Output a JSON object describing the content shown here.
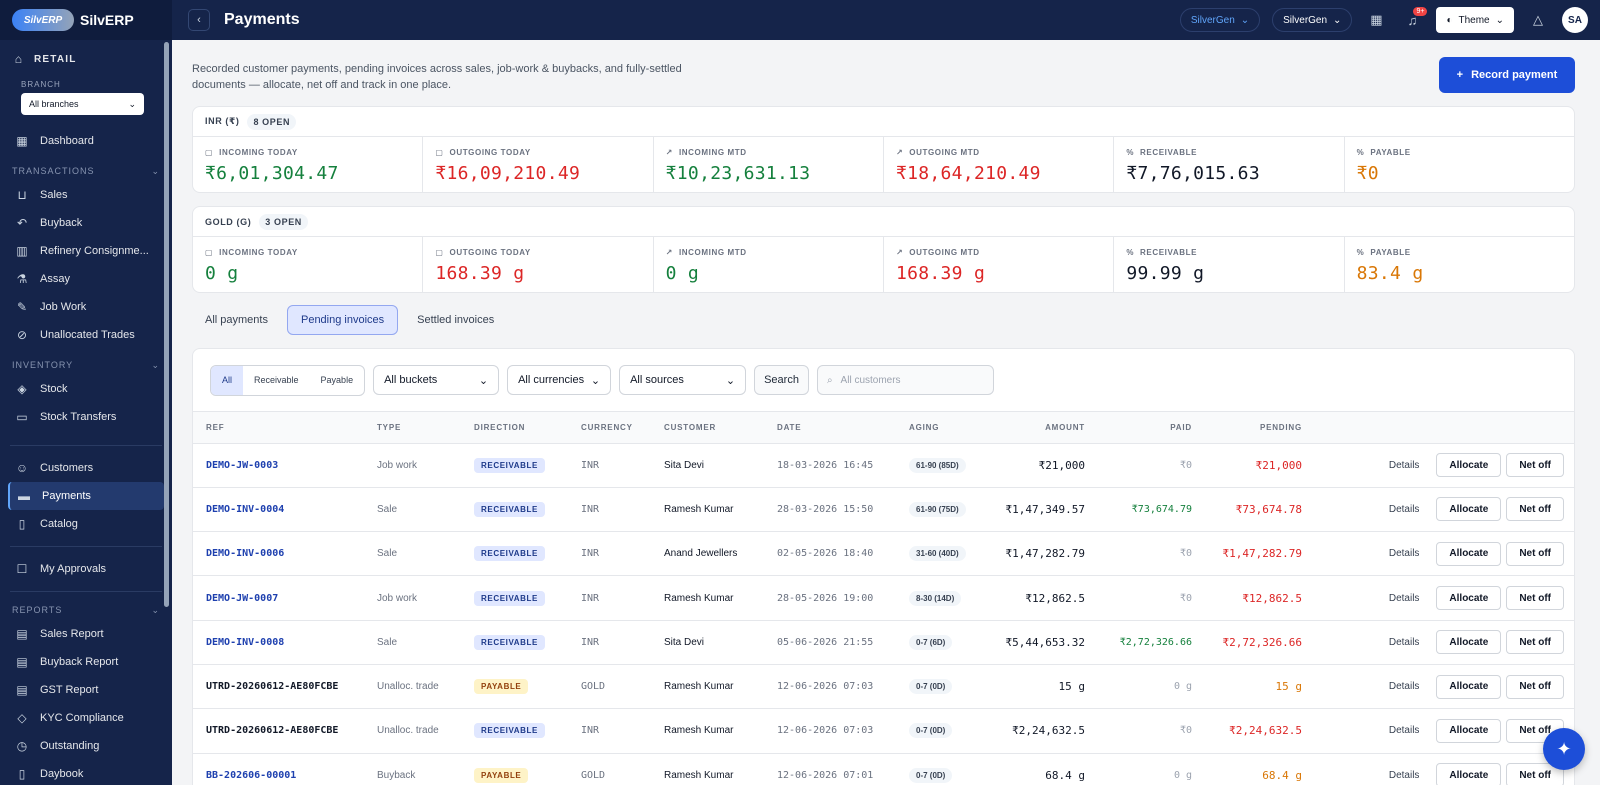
{
  "brand": {
    "logo_text": "SilvERP",
    "name": "SilvERP"
  },
  "sidebar": {
    "section": "RETAIL",
    "branch_label": "BRANCH",
    "branch_value": "All branches",
    "top_items": [
      {
        "label": "Dashboard",
        "icon": "dashboard-icon"
      }
    ],
    "groups": [
      {
        "title": "TRANSACTIONS",
        "items": [
          {
            "label": "Sales",
            "icon": "cart-icon"
          },
          {
            "label": "Buyback",
            "icon": "return-icon"
          },
          {
            "label": "Refinery Consignme...",
            "icon": "factory-icon"
          },
          {
            "label": "Assay",
            "icon": "flask-icon"
          },
          {
            "label": "Job Work",
            "icon": "wrench-icon"
          },
          {
            "label": "Unallocated Trades",
            "icon": "link-icon"
          }
        ]
      },
      {
        "title": "INVENTORY",
        "items": [
          {
            "label": "Stock",
            "icon": "box-icon"
          },
          {
            "label": "Stock Transfers",
            "icon": "truck-icon"
          }
        ]
      }
    ],
    "middle_items": [
      {
        "label": "Customers",
        "icon": "users-icon"
      },
      {
        "label": "Payments",
        "icon": "card-icon",
        "active": true
      },
      {
        "label": "Catalog",
        "icon": "book-icon"
      }
    ],
    "approvals": {
      "label": "My Approvals",
      "icon": "approval-icon"
    },
    "reports": {
      "title": "REPORTS",
      "items": [
        {
          "label": "Sales Report",
          "icon": "report-icon"
        },
        {
          "label": "Buyback Report",
          "icon": "report-icon"
        },
        {
          "label": "GST Report",
          "icon": "report-icon"
        },
        {
          "label": "KYC Compliance",
          "icon": "shield-icon"
        },
        {
          "label": "Outstanding",
          "icon": "clock-icon"
        },
        {
          "label": "Daybook",
          "icon": "book-icon"
        }
      ]
    }
  },
  "topbar": {
    "title": "Payments",
    "org_pill": "SilverGen",
    "company_pill": "SilverGen",
    "notif_badge": "9+",
    "theme_label": "Theme",
    "avatar": "SA"
  },
  "page": {
    "intro": "Recorded customer payments, pending invoices across sales, job-work & buybacks, and fully-settled documents — allocate, net off and track in one place.",
    "record_button": "Record payment"
  },
  "summaries": [
    {
      "currency": "INR (₹)",
      "open": "8 OPEN",
      "stats": [
        {
          "label": "INCOMING TODAY",
          "value": "₹6,01,304.47",
          "tone": "green",
          "icon": "calendar-icon"
        },
        {
          "label": "OUTGOING TODAY",
          "value": "₹16,09,210.49",
          "tone": "red",
          "icon": "calendar-icon"
        },
        {
          "label": "INCOMING MTD",
          "value": "₹10,23,631.13",
          "tone": "green",
          "icon": "trend-up-icon"
        },
        {
          "label": "OUTGOING MTD",
          "value": "₹18,64,210.49",
          "tone": "red",
          "icon": "trend-up-icon"
        },
        {
          "label": "RECEIVABLE",
          "value": "₹7,76,015.63",
          "tone": "dark",
          "icon": "percent-icon"
        },
        {
          "label": "PAYABLE",
          "value": "₹0",
          "tone": "amber",
          "icon": "percent-icon"
        }
      ]
    },
    {
      "currency": "GOLD (G)",
      "open": "3 OPEN",
      "stats": [
        {
          "label": "INCOMING TODAY",
          "value": "0 g",
          "tone": "green",
          "icon": "calendar-icon"
        },
        {
          "label": "OUTGOING TODAY",
          "value": "168.39 g",
          "tone": "red",
          "icon": "calendar-icon"
        },
        {
          "label": "INCOMING MTD",
          "value": "0 g",
          "tone": "green",
          "icon": "trend-up-icon"
        },
        {
          "label": "OUTGOING MTD",
          "value": "168.39 g",
          "tone": "red",
          "icon": "trend-up-icon"
        },
        {
          "label": "RECEIVABLE",
          "value": "99.99 g",
          "tone": "dark",
          "icon": "percent-icon"
        },
        {
          "label": "PAYABLE",
          "value": "83.4 g",
          "tone": "amber",
          "icon": "percent-icon"
        }
      ]
    }
  ],
  "tabs": [
    {
      "label": "All payments"
    },
    {
      "label": "Pending invoices",
      "active": true
    },
    {
      "label": "Settled invoices"
    }
  ],
  "filters": {
    "segments": [
      "All",
      "Receivable",
      "Payable"
    ],
    "bucket": "All buckets",
    "currency": "All currencies",
    "source": "All sources",
    "search_label": "Search",
    "customer_placeholder": "All customers"
  },
  "table": {
    "headers": [
      "REF",
      "TYPE",
      "DIRECTION",
      "CURRENCY",
      "CUSTOMER",
      "DATE",
      "AGING",
      "AMOUNT",
      "PAID",
      "PENDING"
    ],
    "action_labels": {
      "details": "Details",
      "allocate": "Allocate",
      "net_off": "Net off"
    },
    "rows": [
      {
        "ref": "DEMO-JW-0003",
        "link": true,
        "type": "Job work",
        "direction": "RECEIVABLE",
        "currency": "INR",
        "customer": "Sita Devi",
        "date": "18-03-2026 16:45",
        "aging": "61-90 (85D)",
        "amount": "₹21,000",
        "paid": "₹0",
        "paid_tone": "muted",
        "pending": "₹21,000",
        "pending_tone": "red"
      },
      {
        "ref": "DEMO-INV-0004",
        "link": true,
        "type": "Sale",
        "direction": "RECEIVABLE",
        "currency": "INR",
        "customer": "Ramesh Kumar",
        "date": "28-03-2026 15:50",
        "aging": "61-90 (75D)",
        "amount": "₹1,47,349.57",
        "paid": "₹73,674.79",
        "paid_tone": "green",
        "pending": "₹73,674.78",
        "pending_tone": "red"
      },
      {
        "ref": "DEMO-INV-0006",
        "link": true,
        "type": "Sale",
        "direction": "RECEIVABLE",
        "currency": "INR",
        "customer": "Anand Jewellers",
        "date": "02-05-2026 18:40",
        "aging": "31-60 (40D)",
        "amount": "₹1,47,282.79",
        "paid": "₹0",
        "paid_tone": "muted",
        "pending": "₹1,47,282.79",
        "pending_tone": "red"
      },
      {
        "ref": "DEMO-JW-0007",
        "link": true,
        "type": "Job work",
        "direction": "RECEIVABLE",
        "currency": "INR",
        "customer": "Ramesh Kumar",
        "date": "28-05-2026 19:00",
        "aging": "8-30 (14D)",
        "amount": "₹12,862.5",
        "paid": "₹0",
        "paid_tone": "muted",
        "pending": "₹12,862.5",
        "pending_tone": "red"
      },
      {
        "ref": "DEMO-INV-0008",
        "link": true,
        "type": "Sale",
        "direction": "RECEIVABLE",
        "currency": "INR",
        "customer": "Sita Devi",
        "date": "05-06-2026 21:55",
        "aging": "0-7 (6D)",
        "amount": "₹5,44,653.32",
        "paid": "₹2,72,326.66",
        "paid_tone": "green",
        "pending": "₹2,72,326.66",
        "pending_tone": "red"
      },
      {
        "ref": "UTRD-20260612-AE80FCBE",
        "link": false,
        "type": "Unalloc. trade",
        "direction": "PAYABLE",
        "currency": "GOLD",
        "customer": "Ramesh Kumar",
        "date": "12-06-2026 07:03",
        "aging": "0-7 (0D)",
        "amount": "15 g",
        "paid": "0 g",
        "paid_tone": "muted",
        "pending": "15 g",
        "pending_tone": "amber"
      },
      {
        "ref": "UTRD-20260612-AE80FCBE",
        "link": false,
        "type": "Unalloc. trade",
        "direction": "RECEIVABLE",
        "currency": "INR",
        "customer": "Ramesh Kumar",
        "date": "12-06-2026 07:03",
        "aging": "0-7 (0D)",
        "amount": "₹2,24,632.5",
        "paid": "₹0",
        "paid_tone": "muted",
        "pending": "₹2,24,632.5",
        "pending_tone": "red"
      },
      {
        "ref": "BB-202606-00001",
        "link": true,
        "type": "Buyback",
        "direction": "PAYABLE",
        "currency": "GOLD",
        "customer": "Ramesh Kumar",
        "date": "12-06-2026 07:01",
        "aging": "0-7 (0D)",
        "amount": "68.4 g",
        "paid": "0 g",
        "paid_tone": "muted",
        "pending": "68.4 g",
        "pending_tone": "amber"
      }
    ]
  },
  "icons": {
    "fab": "sparkle-icon"
  }
}
